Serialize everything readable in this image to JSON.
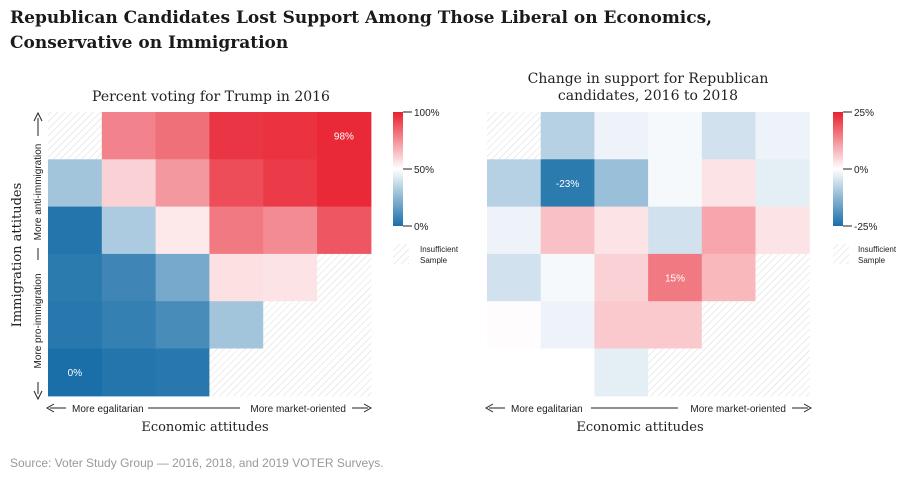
{
  "title": "Republican Candidates Lost Support Among Those Liberal on Economics, Conservative on Immigration",
  "source": "Source: Voter Study Group — 2016, 2018, and 2019 VOTER Surveys.",
  "chart_data": [
    {
      "type": "heatmap",
      "title": "Percent voting for Trump in 2016",
      "xlabel": "Economic attitudes",
      "ylabel": "Immigration attitudes",
      "x_left_label": "More egalitarian",
      "x_right_label": "More market-oriented",
      "y_top_label": "More anti-immigration",
      "y_bottom_label": "More pro-immigration",
      "colorbar": {
        "ticks": [
          "100%",
          "50%",
          "0%"
        ],
        "min": 0,
        "max": 100,
        "low_color": "#1a6fa8",
        "mid_color": "#ffffff",
        "high_color": "#e8202f"
      },
      "insufficient_label": [
        "Insufficient",
        "Sample"
      ],
      "cell_labels": [
        {
          "row": 0,
          "col": 5,
          "text": "98%"
        },
        {
          "row": 5,
          "col": 0,
          "text": "0%"
        }
      ],
      "values": [
        [
          null,
          78,
          82,
          95,
          96,
          98
        ],
        [
          30,
          60,
          73,
          90,
          94,
          98
        ],
        [
          2,
          32,
          55,
          80,
          76,
          88
        ],
        [
          4,
          8,
          20,
          57,
          56,
          null
        ],
        [
          3,
          6,
          10,
          30,
          null,
          null
        ],
        [
          0,
          2,
          3,
          null,
          null,
          null
        ]
      ]
    },
    {
      "type": "heatmap",
      "title": "Change in support for Republican candidates, 2016 to 2018",
      "xlabel": "Economic attitudes",
      "x_left_label": "More egalitarian",
      "x_right_label": "More market-oriented",
      "colorbar": {
        "ticks": [
          "25%",
          "0%",
          "-25%"
        ],
        "min": -25,
        "max": 25,
        "low_color": "#1a6fa8",
        "mid_color": "#ffffff",
        "high_color": "#e8202f"
      },
      "insufficient_label": [
        "Insufficient",
        "Sample"
      ],
      "cell_labels": [
        {
          "row": 1,
          "col": 1,
          "text": "-23%"
        },
        {
          "row": 3,
          "col": 3,
          "text": "15%"
        }
      ],
      "values": [
        [
          null,
          -8,
          -2,
          -1,
          -5,
          -2
        ],
        [
          -8,
          -23,
          -11,
          -1,
          3,
          -3
        ],
        [
          -2,
          7,
          3,
          -5,
          10,
          3
        ],
        [
          -5,
          -1,
          5,
          15,
          8,
          null
        ],
        [
          0.3,
          -2,
          6,
          6,
          null,
          null
        ],
        [
          0,
          0,
          -3,
          null,
          null,
          null
        ]
      ]
    }
  ]
}
